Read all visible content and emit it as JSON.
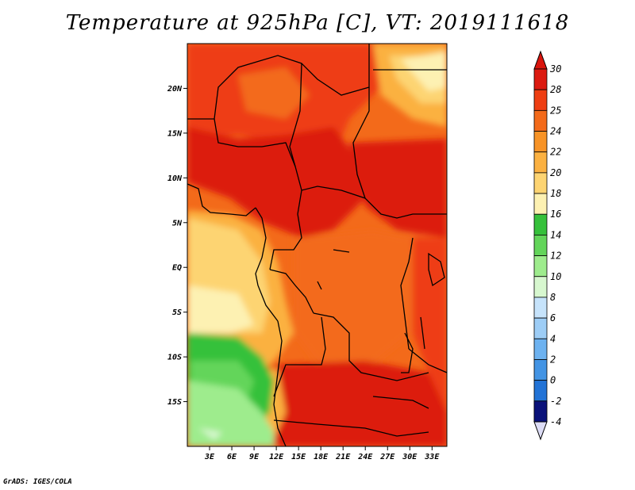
{
  "title": "Temperature at 925hPa [C], VT: 2019111618",
  "credit": "GrADS: IGES/COLA",
  "map": {
    "lon_range": [
      0,
      35
    ],
    "lat_range": [
      -20,
      25
    ],
    "lat_ticks": [
      {
        "value": 20,
        "label": "20N"
      },
      {
        "value": 15,
        "label": "15N"
      },
      {
        "value": 10,
        "label": "10N"
      },
      {
        "value": 5,
        "label": "5N"
      },
      {
        "value": 0,
        "label": "EQ"
      },
      {
        "value": -5,
        "label": "5S"
      },
      {
        "value": -10,
        "label": "10S"
      },
      {
        "value": -15,
        "label": "15S"
      }
    ],
    "lon_ticks": [
      {
        "value": 3,
        "label": "3E"
      },
      {
        "value": 6,
        "label": "6E"
      },
      {
        "value": 9,
        "label": "9E"
      },
      {
        "value": 12,
        "label": "12E"
      },
      {
        "value": 15,
        "label": "15E"
      },
      {
        "value": 18,
        "label": "18E"
      },
      {
        "value": 21,
        "label": "21E"
      },
      {
        "value": 24,
        "label": "24E"
      },
      {
        "value": 27,
        "label": "27E"
      },
      {
        "value": 30,
        "label": "30E"
      },
      {
        "value": 33,
        "label": "33E"
      }
    ]
  },
  "colorbar": {
    "levels": [
      {
        "label": "30",
        "color": "#dc1a10"
      },
      {
        "label": "28",
        "color": "#ee3e12"
      },
      {
        "label": "25",
        "color": "#f36a1a"
      },
      {
        "label": "24",
        "color": "#f79326"
      },
      {
        "label": "22",
        "color": "#fbb141"
      },
      {
        "label": "20",
        "color": "#fdd472"
      },
      {
        "label": "18",
        "color": "#fdf1b2"
      },
      {
        "label": "16",
        "color": "#36c13b"
      },
      {
        "label": "14",
        "color": "#63d55a"
      },
      {
        "label": "12",
        "color": "#9eec8d"
      },
      {
        "label": "10",
        "color": "#d7f7cf"
      },
      {
        "label": "8",
        "color": "#c6e3fb"
      },
      {
        "label": "6",
        "color": "#9dcdf6"
      },
      {
        "label": "4",
        "color": "#6db2f0"
      },
      {
        "label": "2",
        "color": "#4394e4"
      },
      {
        "label": "0",
        "color": "#2273d6"
      },
      {
        "label": "-2",
        "color": "#1156c1"
      },
      {
        "label": "-4",
        "color": "#0b3ea4"
      }
    ],
    "top_color": "#d9150d",
    "bottom_color": "#0a127a",
    "below_min_color": "#dcdcf5"
  }
}
